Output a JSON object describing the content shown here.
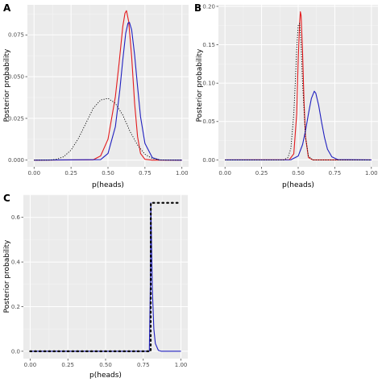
{
  "colors": {
    "panel_bg": "#ebebeb",
    "grid_major": "#ffffff",
    "grid_minor": "#f5f5f5",
    "red": "#e31a1c",
    "blue": "#1f1fbf",
    "dotted": "#000000"
  },
  "chart_data": [
    {
      "panel_label": "A",
      "type": "line",
      "xlabel": "p(heads)",
      "ylabel": "Posterior probability",
      "xlim": [
        0,
        1
      ],
      "ylim": [
        -0.004,
        0.093
      ],
      "xticks": [
        "0.00",
        "0.25",
        "0.50",
        "0.75",
        "1.00"
      ],
      "xtick_values": [
        0,
        0.25,
        0.5,
        0.75,
        1.0
      ],
      "yticks": [
        "0.000",
        "0.025",
        "0.050",
        "0.075"
      ],
      "ytick_values": [
        0,
        0.025,
        0.05,
        0.075
      ],
      "grid": true,
      "series": [
        {
          "color": "red",
          "dash": "solid",
          "x": [
            0.0,
            0.4,
            0.45,
            0.5,
            0.55,
            0.575,
            0.6,
            0.615,
            0.625,
            0.64,
            0.66,
            0.68,
            0.7,
            0.72,
            0.75,
            0.8,
            1.0
          ],
          "y": [
            0,
            0.0002,
            0.0025,
            0.0125,
            0.038,
            0.058,
            0.08,
            0.088,
            0.0895,
            0.083,
            0.062,
            0.034,
            0.014,
            0.004,
            0.0005,
            0,
            0
          ]
        },
        {
          "color": "blue",
          "dash": "solid",
          "x": [
            0.0,
            0.45,
            0.5,
            0.55,
            0.58,
            0.6,
            0.62,
            0.635,
            0.645,
            0.66,
            0.68,
            0.7,
            0.72,
            0.75,
            0.8,
            0.85,
            1.0
          ],
          "y": [
            0,
            0.0003,
            0.004,
            0.02,
            0.042,
            0.06,
            0.076,
            0.082,
            0.0825,
            0.078,
            0.063,
            0.044,
            0.026,
            0.01,
            0.0015,
            0.0001,
            0
          ]
        },
        {
          "color": "dotted",
          "dash": "dotted",
          "x": [
            0.0,
            0.1,
            0.15,
            0.2,
            0.25,
            0.3,
            0.35,
            0.4,
            0.45,
            0.5,
            0.55,
            0.6,
            0.65,
            0.7,
            0.75,
            0.8,
            0.85,
            0.9,
            1.0
          ],
          "y": [
            0,
            0,
            0.0005,
            0.002,
            0.006,
            0.013,
            0.022,
            0.031,
            0.036,
            0.037,
            0.034,
            0.027,
            0.017,
            0.009,
            0.0035,
            0.001,
            0.0002,
            0,
            0
          ]
        }
      ]
    },
    {
      "panel_label": "B",
      "type": "line",
      "xlabel": "p(heads)",
      "ylabel": "Posterior probability",
      "xlim": [
        0,
        1
      ],
      "ylim": [
        -0.009,
        0.202
      ],
      "xticks": [
        "0.00",
        "0.25",
        "0.50",
        "0.75",
        "1.00"
      ],
      "xtick_values": [
        0,
        0.25,
        0.5,
        0.75,
        1.0
      ],
      "yticks": [
        "0.00",
        "0.05",
        "0.10",
        "0.15",
        "0.20"
      ],
      "ytick_values": [
        0,
        0.05,
        0.1,
        0.15,
        0.2
      ],
      "grid": true,
      "series": [
        {
          "color": "red",
          "dash": "solid",
          "x": [
            0.0,
            0.44,
            0.47,
            0.49,
            0.5,
            0.51,
            0.515,
            0.52,
            0.53,
            0.54,
            0.55,
            0.57,
            0.6,
            1.0
          ],
          "y": [
            0,
            0.0003,
            0.008,
            0.06,
            0.13,
            0.18,
            0.193,
            0.188,
            0.14,
            0.075,
            0.03,
            0.003,
            0,
            0
          ]
        },
        {
          "color": "blue",
          "dash": "solid",
          "x": [
            0.0,
            0.45,
            0.5,
            0.53,
            0.55,
            0.57,
            0.59,
            0.61,
            0.62,
            0.64,
            0.66,
            0.68,
            0.7,
            0.73,
            0.77,
            1.0
          ],
          "y": [
            0,
            0.0002,
            0.005,
            0.02,
            0.038,
            0.06,
            0.08,
            0.0895,
            0.087,
            0.071,
            0.049,
            0.029,
            0.014,
            0.004,
            0.0004,
            0
          ]
        },
        {
          "color": "dotted",
          "dash": "dotted",
          "x": [
            0.0,
            0.4,
            0.43,
            0.45,
            0.47,
            0.48,
            0.49,
            0.5,
            0.51,
            0.52,
            0.53,
            0.55,
            0.57,
            0.6,
            1.0
          ],
          "y": [
            0,
            0,
            0.003,
            0.015,
            0.06,
            0.1,
            0.145,
            0.175,
            0.178,
            0.15,
            0.1,
            0.03,
            0.005,
            0,
            0
          ]
        }
      ]
    },
    {
      "panel_label": "C",
      "type": "line",
      "xlabel": "p(heads)",
      "ylabel": "Posterior probability",
      "xlim": [
        0,
        1
      ],
      "ylim": [
        -0.033,
        0.7
      ],
      "xticks": [
        "0.00",
        "0.25",
        "0.50",
        "0.75",
        "1.00"
      ],
      "xtick_values": [
        0,
        0.25,
        0.5,
        0.75,
        1.0
      ],
      "yticks": [
        "0.0",
        "0.2",
        "0.4",
        "0.6"
      ],
      "ytick_values": [
        0,
        0.2,
        0.4,
        0.6
      ],
      "grid": true,
      "series": [
        {
          "color": "blue",
          "dash": "solid",
          "x": [
            0.0,
            0.79,
            0.797,
            0.8,
            0.803,
            0.81,
            0.82,
            0.83,
            0.85,
            0.87,
            1.0
          ],
          "y": [
            0,
            0,
            0.3,
            0.665,
            0.55,
            0.28,
            0.1,
            0.035,
            0.004,
            0,
            0
          ]
        },
        {
          "color": "dotted",
          "dash": "dotted-heavy",
          "x": [
            0.0,
            0.799,
            0.8,
            1.0
          ],
          "y": [
            0,
            0,
            0.665,
            0.665
          ]
        }
      ]
    }
  ]
}
